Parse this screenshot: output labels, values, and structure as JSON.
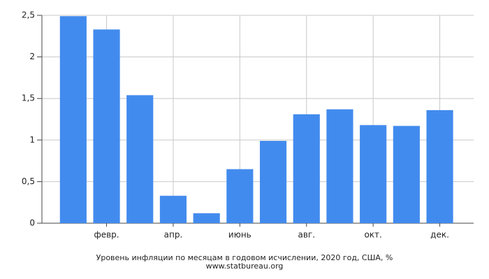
{
  "chart_data": {
    "type": "bar",
    "title": "Уровень инфляции по месяцам в годовом исчислении, 2020 год, США, %",
    "source": "www.statbureau.org",
    "categories": [
      null,
      "февр.",
      null,
      "апр.",
      null,
      "июнь",
      null,
      "авг.",
      null,
      "окт.",
      null,
      "дек."
    ],
    "values": [
      2.49,
      2.33,
      1.54,
      0.33,
      0.12,
      0.65,
      0.99,
      1.31,
      1.37,
      1.18,
      1.17,
      1.36
    ],
    "color": "#428bee",
    "ylim": [
      0,
      2.5
    ],
    "yticks": [
      0,
      {
        "value": 0.5,
        "label": "0,5"
      },
      1,
      {
        "value": 1.5,
        "label": "1,5"
      },
      2,
      {
        "value": 2.5,
        "label": "2,5"
      }
    ],
    "grid": true
  }
}
